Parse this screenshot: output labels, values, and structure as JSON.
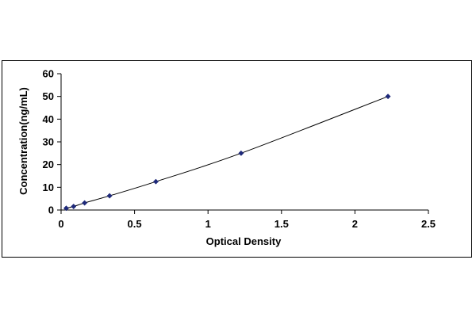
{
  "chart_data": {
    "type": "scatter",
    "title": "",
    "xlabel": "Optical Density",
    "ylabel": "Concentration(ng/mL)",
    "xlim": [
      0,
      2.5
    ],
    "ylim": [
      0,
      60
    ],
    "x_ticks": [
      0,
      0.5,
      1,
      1.5,
      2,
      2.5
    ],
    "x_tick_labels": [
      "0",
      "0.5",
      "1",
      "1.5",
      "2",
      "2.5"
    ],
    "y_ticks": [
      0,
      10,
      20,
      30,
      40,
      50,
      60
    ],
    "y_tick_labels": [
      "0",
      "10",
      "20",
      "30",
      "40",
      "50",
      "60"
    ],
    "grid": false,
    "legend": "none",
    "marker": "diamond",
    "colors": {
      "marker": "#1f2a7a",
      "line": "#000000",
      "axis": "#000000",
      "frame": "#000000"
    },
    "series": [
      {
        "x": [
          0.035,
          0.085,
          0.16,
          0.33,
          0.645,
          1.225,
          2.225
        ],
        "y": [
          0.78,
          1.56,
          3.12,
          6.25,
          12.5,
          25,
          50
        ],
        "trendline": true
      }
    ]
  }
}
